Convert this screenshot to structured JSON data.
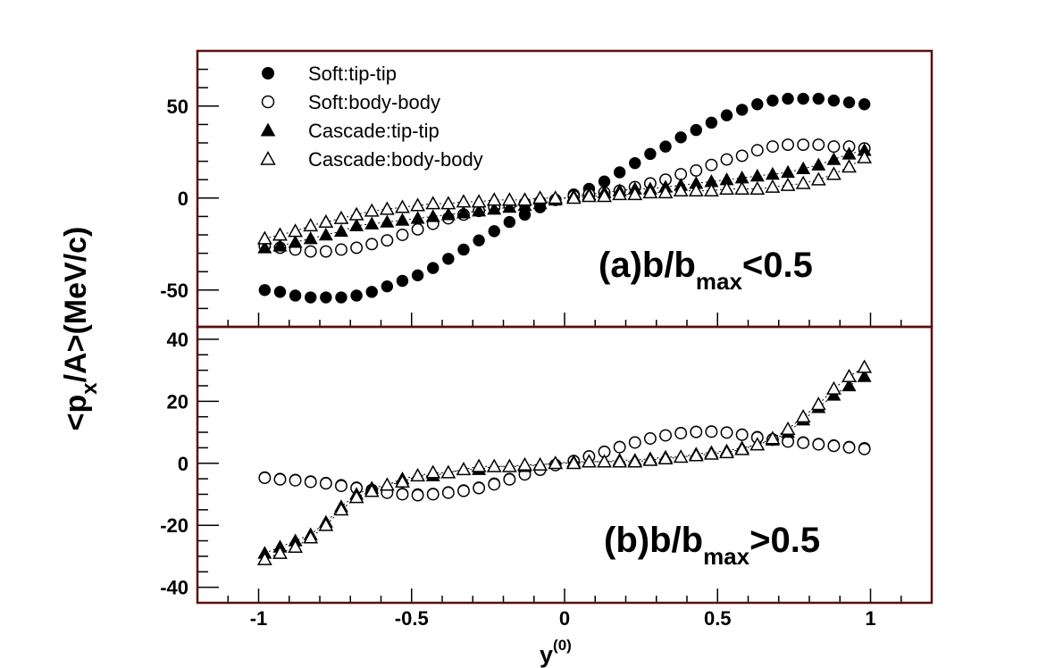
{
  "chart_data": [
    {
      "type": "scatter",
      "panel": "a",
      "annotation": {
        "main": "(a)b/b",
        "sub": "max",
        "tail": "<0.5"
      },
      "xlim": [
        -1.2,
        1.2
      ],
      "ylim": [
        -70,
        80
      ],
      "grid": false,
      "legend_position": "top-left",
      "x_ticks": [
        -1,
        -0.5,
        0,
        0.5,
        1
      ],
      "y_ticks": [
        {
          "value": 50,
          "label": "50"
        },
        {
          "value": 0,
          "label": "0"
        },
        {
          "value": -50,
          "label": "-50"
        }
      ],
      "series": [
        {
          "name": "Soft:tip-tip",
          "marker": "filled-circle",
          "x": [
            -0.98,
            -0.93,
            -0.88,
            -0.83,
            -0.78,
            -0.73,
            -0.68,
            -0.63,
            -0.58,
            -0.53,
            -0.48,
            -0.43,
            -0.38,
            -0.33,
            -0.28,
            -0.23,
            -0.18,
            -0.13,
            -0.08,
            -0.03,
            0.03,
            0.08,
            0.13,
            0.18,
            0.23,
            0.28,
            0.33,
            0.38,
            0.43,
            0.48,
            0.53,
            0.58,
            0.63,
            0.68,
            0.73,
            0.78,
            0.83,
            0.88,
            0.93,
            0.98
          ],
          "y": [
            -50,
            -51,
            -53,
            -54,
            -54,
            -54,
            -53,
            -51,
            -48,
            -45,
            -42,
            -38,
            -33,
            -28,
            -23,
            -18,
            -13,
            -9,
            -5,
            -1,
            2,
            5,
            9,
            14,
            19,
            24,
            28,
            33,
            37,
            41,
            45,
            48,
            51,
            53,
            54,
            54,
            54,
            53,
            52,
            51
          ]
        },
        {
          "name": "Soft:body-body",
          "marker": "open-circle",
          "x": [
            -0.98,
            -0.93,
            -0.88,
            -0.83,
            -0.78,
            -0.73,
            -0.68,
            -0.63,
            -0.58,
            -0.53,
            -0.48,
            -0.43,
            -0.38,
            -0.33,
            -0.28,
            -0.23,
            -0.18,
            -0.13,
            -0.08,
            -0.03,
            0.03,
            0.08,
            0.13,
            0.18,
            0.23,
            0.28,
            0.33,
            0.38,
            0.43,
            0.48,
            0.53,
            0.58,
            0.63,
            0.68,
            0.73,
            0.78,
            0.83,
            0.88,
            0.93,
            0.98
          ],
          "y": [
            -26,
            -27,
            -28,
            -29,
            -29,
            -28,
            -27,
            -25,
            -23,
            -20,
            -17,
            -14,
            -11,
            -9,
            -7,
            -5,
            -4,
            -3,
            -2,
            -1,
            1,
            2,
            3,
            4,
            6,
            8,
            10,
            13,
            15,
            18,
            21,
            23,
            26,
            28,
            29,
            29,
            29,
            28,
            28,
            27
          ]
        },
        {
          "name": "Cascade:tip-tip",
          "marker": "filled-triangle",
          "x": [
            -0.98,
            -0.93,
            -0.88,
            -0.83,
            -0.78,
            -0.73,
            -0.68,
            -0.63,
            -0.58,
            -0.53,
            -0.48,
            -0.43,
            -0.38,
            -0.33,
            -0.28,
            -0.23,
            -0.18,
            -0.13,
            -0.08,
            -0.03,
            0.03,
            0.08,
            0.13,
            0.18,
            0.23,
            0.28,
            0.33,
            0.38,
            0.43,
            0.48,
            0.53,
            0.58,
            0.63,
            0.68,
            0.73,
            0.78,
            0.83,
            0.88,
            0.93,
            0.98
          ],
          "y": [
            -27,
            -26,
            -24,
            -22,
            -20,
            -18,
            -15,
            -14,
            -13,
            -12,
            -11,
            -10,
            -9,
            -8,
            -7,
            -6,
            -5,
            -4,
            -3,
            -1,
            1,
            2,
            3,
            4,
            5,
            5,
            6,
            7,
            8,
            9,
            10,
            11,
            12,
            13,
            14,
            16,
            18,
            21,
            24,
            26
          ]
        },
        {
          "name": "Cascade:body-body",
          "marker": "open-triangle",
          "x": [
            -0.98,
            -0.93,
            -0.88,
            -0.83,
            -0.78,
            -0.73,
            -0.68,
            -0.63,
            -0.58,
            -0.53,
            -0.48,
            -0.43,
            -0.38,
            -0.33,
            -0.28,
            -0.23,
            -0.18,
            -0.13,
            -0.08,
            -0.03,
            0.03,
            0.08,
            0.13,
            0.18,
            0.23,
            0.28,
            0.33,
            0.38,
            0.43,
            0.48,
            0.53,
            0.58,
            0.63,
            0.68,
            0.73,
            0.78,
            0.83,
            0.88,
            0.93,
            0.98
          ],
          "y": [
            -22,
            -20,
            -18,
            -15,
            -13,
            -11,
            -9,
            -7,
            -6,
            -5,
            -4,
            -3,
            -3,
            -2,
            -2,
            -1,
            -1,
            -1,
            0,
            0,
            0,
            1,
            1,
            2,
            2,
            3,
            3,
            4,
            4,
            4,
            5,
            5,
            5,
            6,
            7,
            8,
            10,
            13,
            17,
            22
          ]
        }
      ]
    },
    {
      "type": "scatter",
      "panel": "b",
      "annotation": {
        "main": "(b)b/b",
        "sub": "max",
        "tail": ">0.5"
      },
      "xlim": [
        -1.2,
        1.2
      ],
      "ylim": [
        -45,
        44
      ],
      "xlabel": {
        "main": "y",
        "sup": "(0)"
      },
      "grid": false,
      "x_ticks": [
        {
          "value": -1,
          "label": "-1"
        },
        {
          "value": -0.5,
          "label": "-0.5"
        },
        {
          "value": 0,
          "label": "0"
        },
        {
          "value": 0.5,
          "label": "0.5"
        },
        {
          "value": 1,
          "label": "1"
        }
      ],
      "y_ticks": [
        {
          "value": 40,
          "label": "40"
        },
        {
          "value": 20,
          "label": "20"
        },
        {
          "value": 0,
          "label": "0"
        },
        {
          "value": -20,
          "label": "-20"
        },
        {
          "value": -40,
          "label": "-40"
        }
      ],
      "series": [
        {
          "name": "Soft:tip-tip",
          "marker": "filled-circle",
          "x": [
            -0.98,
            -0.93,
            -0.88,
            -0.83,
            -0.78,
            -0.73,
            -0.68,
            -0.63,
            -0.58,
            -0.53,
            -0.48,
            -0.43,
            -0.38,
            -0.33,
            -0.28,
            -0.23,
            -0.18,
            -0.13,
            -0.08,
            -0.03,
            0.03,
            0.08,
            0.13,
            0.18,
            0.23,
            0.28,
            0.33,
            0.38,
            0.43,
            0.48,
            0.53,
            0.58,
            0.63,
            0.68,
            0.73,
            0.78,
            0.83,
            0.88,
            0.93,
            0.98
          ],
          "y": [
            -4.5,
            -5,
            -5.3,
            -5.8,
            -6.3,
            -7,
            -7.8,
            -8.5,
            -9.2,
            -9.8,
            -10,
            -9.8,
            -9.3,
            -8.7,
            -7.8,
            -6.5,
            -5,
            -3.5,
            -2,
            -0.5,
            0.8,
            2.3,
            3.8,
            5.3,
            6.8,
            8,
            9,
            9.8,
            10.2,
            10.3,
            10,
            9.3,
            8.5,
            7.8,
            7.3,
            6.8,
            6.3,
            5.8,
            5.3,
            4.9
          ]
        },
        {
          "name": "Soft:body-body",
          "marker": "open-circle",
          "x": [
            -0.98,
            -0.93,
            -0.88,
            -0.83,
            -0.78,
            -0.73,
            -0.68,
            -0.63,
            -0.58,
            -0.53,
            -0.48,
            -0.43,
            -0.38,
            -0.33,
            -0.28,
            -0.23,
            -0.18,
            -0.13,
            -0.08,
            -0.03,
            0.03,
            0.08,
            0.13,
            0.18,
            0.23,
            0.28,
            0.33,
            0.38,
            0.43,
            0.48,
            0.53,
            0.58,
            0.63,
            0.68,
            0.73,
            0.78,
            0.83,
            0.88,
            0.93,
            0.98
          ],
          "y": [
            -4.7,
            -5.2,
            -5.5,
            -6,
            -6.5,
            -7.3,
            -8,
            -8.8,
            -9.5,
            -10,
            -10.3,
            -10,
            -9.5,
            -8.9,
            -8,
            -6.8,
            -5.2,
            -3.6,
            -2.1,
            -0.6,
            0.7,
            2.2,
            3.7,
            5.2,
            6.7,
            8,
            9,
            9.7,
            10.1,
            10.2,
            9.9,
            9.2,
            8.3,
            7.6,
            7,
            6.6,
            6.1,
            5.6,
            5.1,
            4.6
          ]
        },
        {
          "name": "Cascade:tip-tip",
          "marker": "filled-triangle",
          "x": [
            -0.98,
            -0.93,
            -0.88,
            -0.83,
            -0.78,
            -0.73,
            -0.68,
            -0.63,
            -0.58,
            -0.53,
            -0.48,
            -0.43,
            -0.38,
            -0.33,
            -0.28,
            -0.23,
            -0.18,
            -0.13,
            -0.08,
            -0.03,
            0.03,
            0.08,
            0.13,
            0.18,
            0.23,
            0.28,
            0.33,
            0.38,
            0.43,
            0.48,
            0.53,
            0.58,
            0.63,
            0.68,
            0.73,
            0.78,
            0.83,
            0.88,
            0.93,
            0.98
          ],
          "y": [
            -29,
            -27,
            -25,
            -23,
            -19,
            -14,
            -10,
            -8,
            -7,
            -5,
            -4,
            -4,
            -3,
            -2,
            -2,
            -1,
            -1,
            -1,
            -0.5,
            0,
            0.5,
            0.5,
            0.5,
            1,
            1,
            1.5,
            2,
            2,
            3,
            3.5,
            4,
            5,
            6,
            7.5,
            10,
            14,
            18,
            22,
            25,
            28
          ]
        },
        {
          "name": "Cascade:body-body",
          "marker": "open-triangle",
          "x": [
            -0.98,
            -0.93,
            -0.88,
            -0.83,
            -0.78,
            -0.73,
            -0.68,
            -0.63,
            -0.58,
            -0.53,
            -0.48,
            -0.43,
            -0.38,
            -0.33,
            -0.28,
            -0.23,
            -0.18,
            -0.13,
            -0.08,
            -0.03,
            0.03,
            0.08,
            0.13,
            0.18,
            0.23,
            0.28,
            0.33,
            0.38,
            0.43,
            0.48,
            0.53,
            0.58,
            0.63,
            0.68,
            0.73,
            0.78,
            0.83,
            0.88,
            0.93,
            0.98
          ],
          "y": [
            -31,
            -29,
            -27,
            -24,
            -20,
            -15,
            -11,
            -9,
            -7,
            -6,
            -4,
            -3,
            -3,
            -2,
            -1,
            -1,
            -1,
            -0.5,
            -0.5,
            0,
            0,
            0.5,
            0.5,
            0.5,
            0.5,
            1,
            1.5,
            2,
            2.5,
            3,
            3.5,
            4.5,
            6,
            8,
            11,
            15,
            19,
            24,
            28,
            31
          ]
        }
      ]
    }
  ],
  "ylabel": {
    "pre": "<p",
    "sub": "x",
    "post": "/A>(MeV/c)"
  },
  "legend": [
    {
      "label": "Soft:tip-tip",
      "marker": "filled-circle"
    },
    {
      "label": "Soft:body-body",
      "marker": "open-circle"
    },
    {
      "label": "Cascade:tip-tip",
      "marker": "filled-triangle"
    },
    {
      "label": "Cascade:body-body",
      "marker": "open-triangle"
    }
  ],
  "colors": {
    "frame": "#5a0f0f",
    "marker": "#000000"
  }
}
